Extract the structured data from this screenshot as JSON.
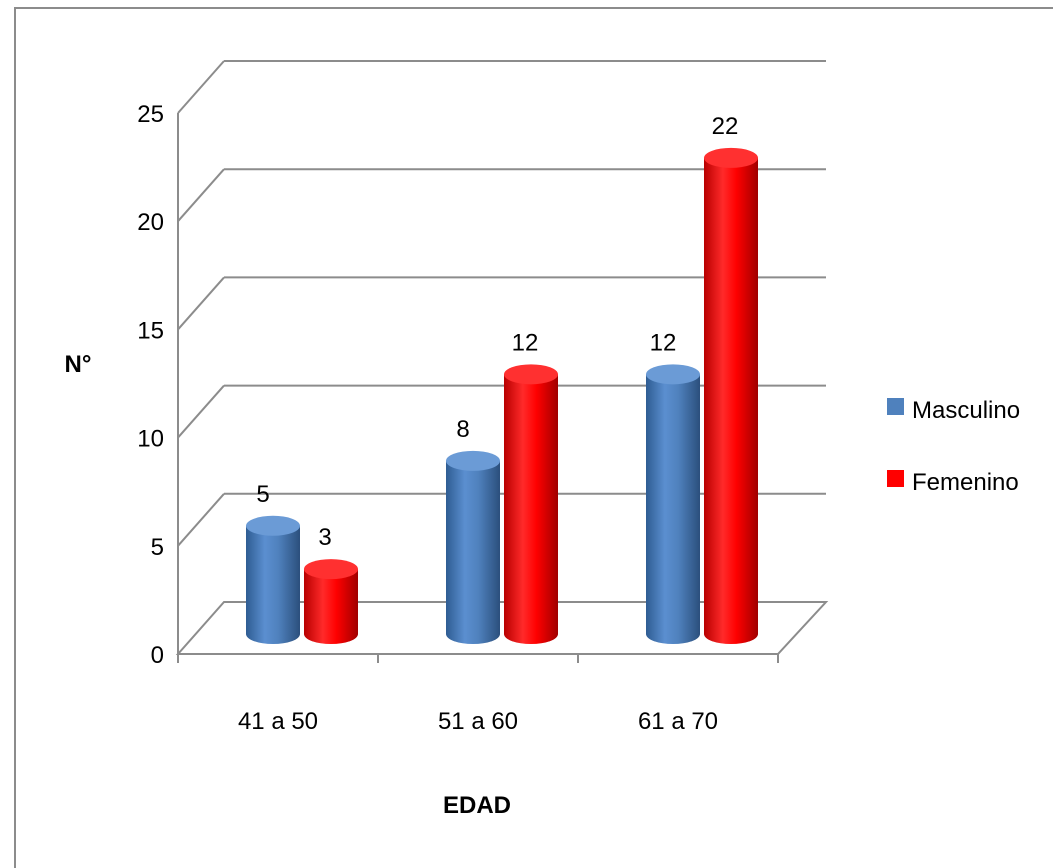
{
  "chart_data": {
    "type": "bar",
    "style": "3d-cylinder",
    "categories": [
      "41 a 50",
      "51 a 60",
      "61 a 70"
    ],
    "series": [
      {
        "name": "Masculino",
        "values": [
          5,
          8,
          12
        ],
        "color": "#4f81bd"
      },
      {
        "name": "Femenino",
        "values": [
          3,
          12,
          22
        ],
        "color": "#ff0000"
      }
    ],
    "xlabel": "EDAD",
    "ylabel": "N°",
    "ylim": [
      0,
      25
    ],
    "yticks": [
      0,
      5,
      10,
      15,
      20,
      25
    ],
    "grid": true,
    "legend_position": "right",
    "data_labels": true
  }
}
